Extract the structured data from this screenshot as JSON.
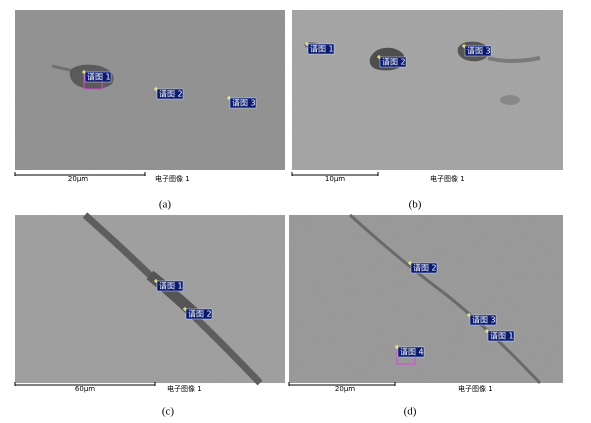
{
  "panels": [
    {
      "caption": "(a)",
      "scale_label": "20µm",
      "image_label": "电子图像 1",
      "markers": [
        "谱图 1",
        "谱图 2",
        "谱图 3"
      ]
    },
    {
      "caption": "(b)",
      "scale_label": "10µm",
      "image_label": "电子图像 1",
      "markers": [
        "谱图 1",
        "谱图 2",
        "谱图 3"
      ]
    },
    {
      "caption": "(c)",
      "scale_label": "60µm",
      "image_label": "电子图像 1",
      "markers": [
        "谱图 1",
        "谱图 2"
      ]
    },
    {
      "caption": "(d)",
      "scale_label": "20µm",
      "image_label": "电子图像 1",
      "markers": [
        "谱图 2",
        "谱图 3",
        "谱图 1",
        "谱图 4"
      ]
    }
  ]
}
